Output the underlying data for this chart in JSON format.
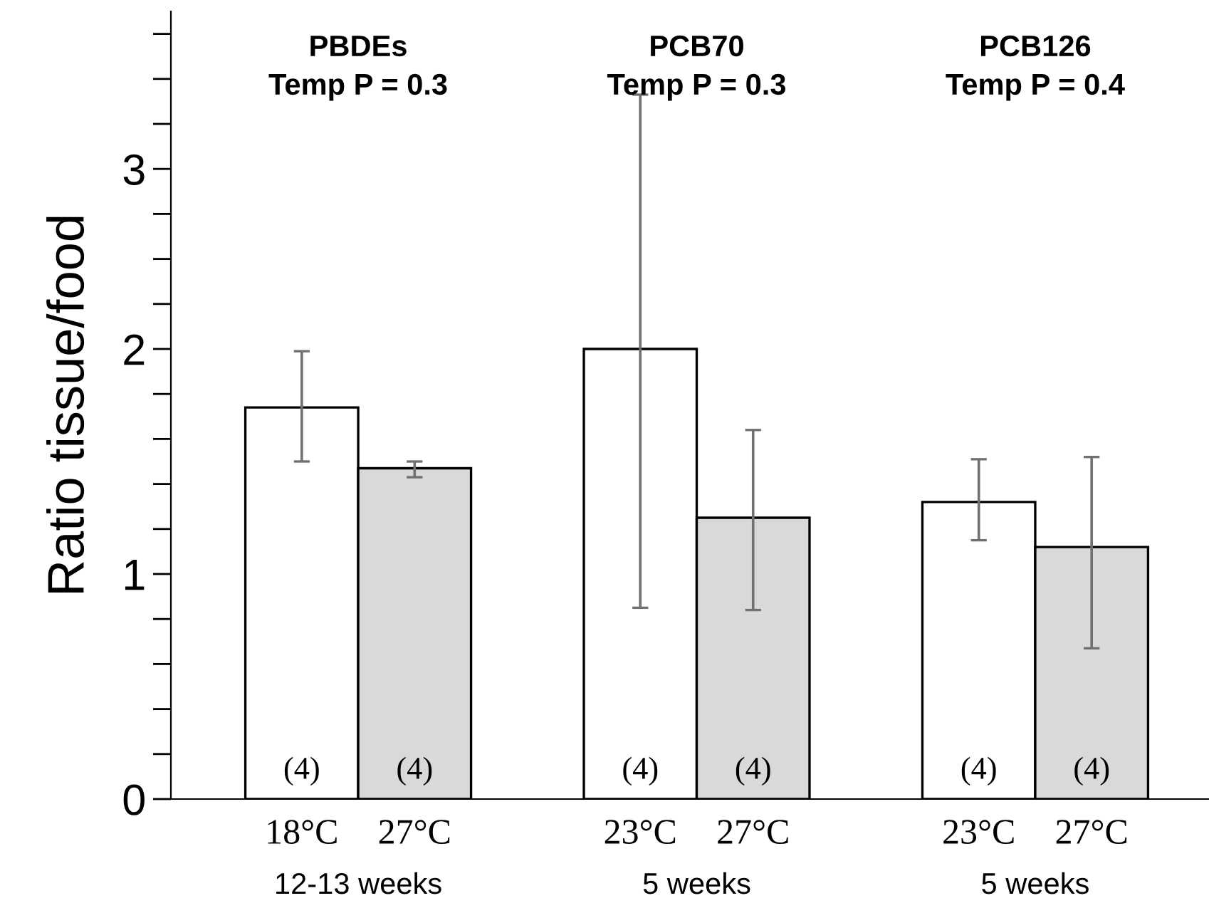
{
  "chart_data": {
    "type": "bar",
    "ylabel": "Ratio tissue/food",
    "categories": [
      "18°C",
      "27°C",
      null,
      "23°C",
      "27°C",
      null,
      "23°C",
      "27°C"
    ],
    "values": [
      1.74,
      1.47,
      null,
      2.0,
      1.25,
      null,
      1.32,
      1.12
    ],
    "colors": [
      "#ffffff",
      "#d9d9d9",
      null,
      "#ffffff",
      "#d9d9d9",
      null,
      "#ffffff",
      "#d9d9d9"
    ],
    "errors": [
      [
        1.5,
        1.99
      ],
      [
        1.43,
        1.5
      ],
      null,
      [
        0.85,
        3.13
      ],
      [
        0.84,
        1.64
      ],
      null,
      [
        1.15,
        1.51
      ],
      [
        0.67,
        1.52
      ]
    ],
    "ylim": [
      0,
      3.5
    ],
    "yticks": [
      0,
      {
        "value": 0.2,
        "label": null
      },
      {
        "value": 0.4,
        "label": null
      },
      {
        "value": 0.6,
        "label": null
      },
      {
        "value": 0.8,
        "label": null
      },
      1,
      {
        "value": 1.2,
        "label": null
      },
      {
        "value": 1.4,
        "label": null
      },
      {
        "value": 1.6,
        "label": null
      },
      {
        "value": 1.8,
        "label": null
      },
      2,
      {
        "value": 2.2,
        "label": null
      },
      {
        "value": 2.4,
        "label": null
      },
      {
        "value": 2.6,
        "label": null
      },
      {
        "value": 2.8,
        "label": "3"
      },
      {
        "value": 3.0,
        "label": null
      },
      {
        "value": 3.2,
        "label": null
      },
      {
        "value": 3.4,
        "label": null
      }
    ],
    "annotations": [
      "PBDEs\nTemp P = 0.3",
      "PCB70\nTemp P = 0.3",
      "PCB126\nTemp P = 0.4",
      "12-13 weeks",
      "5 weeks",
      "5 weeks",
      "(4)",
      "(4)",
      "(4)",
      "(4)",
      "(4)",
      "(4)"
    ],
    "grid": false,
    "legend": false
  }
}
